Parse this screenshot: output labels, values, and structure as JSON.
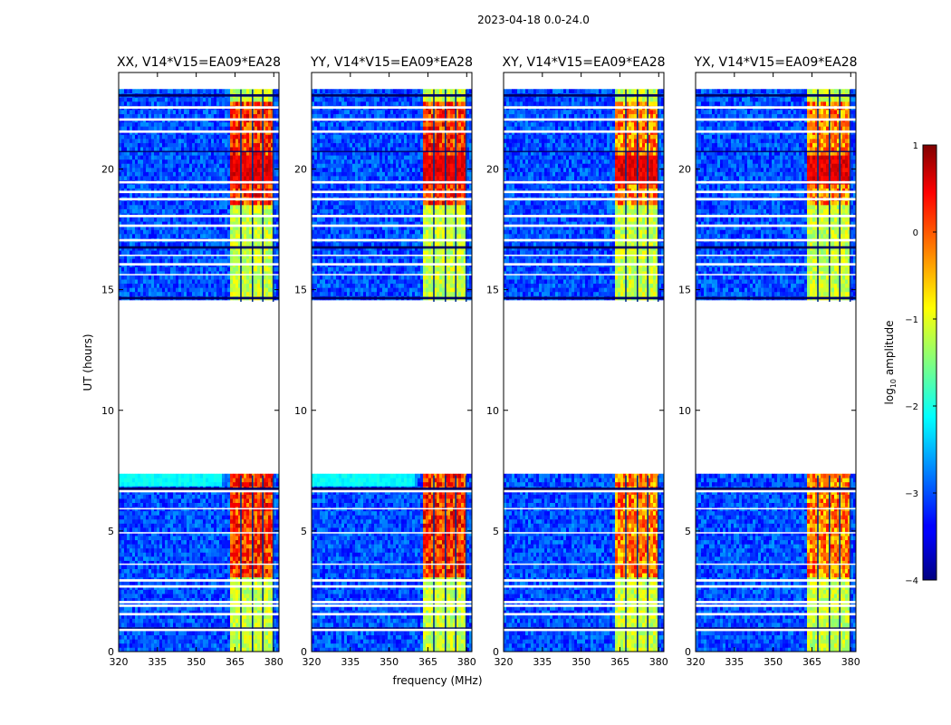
{
  "figure_title": "2023-04-18 0.0-24.0",
  "chart_data": {
    "type": "heatmap",
    "suptitle": "2023-04-18 0.0-24.0",
    "xlabel": "frequency (MHz)",
    "ylabel": "UT (hours)",
    "xlim": [
      320,
      382
    ],
    "ylim": [
      0,
      24
    ],
    "xticks": [
      320,
      335,
      350,
      365,
      380
    ],
    "yticks": [
      0,
      5,
      10,
      15,
      20
    ],
    "data_gap_hours": [
      7.3,
      14.5
    ],
    "rfi_band_mhz": [
      363.5,
      379.5
    ],
    "panels": [
      {
        "title": "XX, V14*V15=EA09*EA28",
        "polarization": "XX"
      },
      {
        "title": "YY, V14*V15=EA09*EA28",
        "polarization": "YY"
      },
      {
        "title": "XY, V14*V15=EA09*EA28",
        "polarization": "XY"
      },
      {
        "title": "YX, V14*V15=EA09*EA28",
        "polarization": "YX"
      }
    ],
    "colorbar": {
      "label": "log10 amplitude",
      "label_base": "log",
      "label_sub": "10",
      "label_rest": " amplitude",
      "range": [
        -4,
        1
      ],
      "ticks": [
        1,
        0,
        -1,
        -2,
        -3,
        -4
      ],
      "tick_labels": [
        "1",
        "0",
        "−1",
        "−2",
        "−3",
        "−4"
      ],
      "colormap": "jet"
    }
  }
}
